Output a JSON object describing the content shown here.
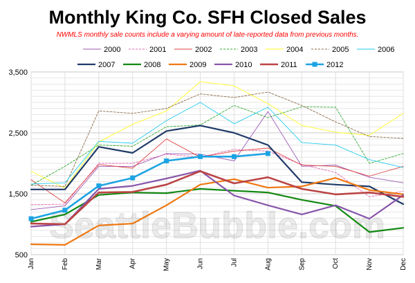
{
  "chart_data": {
    "type": "line",
    "title": "Monthly King Co. SFH Closed Sales",
    "subtitle": "NWMLS monthly sale counts include a varying amount of late-reported  data from previous months.",
    "watermark": "SeattleBubble.com",
    "categories": [
      "Jan",
      "Feb",
      "Mar",
      "Apr",
      "May",
      "Jun",
      "Jul",
      "Aug",
      "Sep",
      "Oct",
      "Nov",
      "Dec"
    ],
    "ylim": [
      500,
      3500
    ],
    "yticks": [
      "500",
      "1,500",
      "2,500",
      "3,500"
    ],
    "legend_position": "top",
    "grid": true,
    "series": [
      {
        "name": "2000",
        "color": "#9b59b6",
        "style": "solid",
        "width": 0.9,
        "marker": false,
        "values": [
          1240,
          1300,
          1950,
          1950,
          2160,
          2150,
          2040,
          2850,
          1950,
          1970,
          1770,
          1680
        ]
      },
      {
        "name": "2001",
        "color": "#e066b0",
        "style": "dashed",
        "width": 0.9,
        "marker": false,
        "values": [
          1320,
          1330,
          2000,
          2000,
          2150,
          2100,
          2230,
          2200,
          1980,
          1850,
          1450,
          1540
        ]
      },
      {
        "name": "2002",
        "color": "#e04040",
        "style": "solid",
        "width": 0.9,
        "marker": false,
        "values": [
          1730,
          1350,
          1980,
          1920,
          2400,
          2100,
          2200,
          2250,
          1970,
          1950,
          1790,
          1950
        ]
      },
      {
        "name": "2003",
        "color": "#33aa33",
        "style": "dashed",
        "width": 0.9,
        "marker": false,
        "values": [
          1640,
          1950,
          2300,
          2280,
          2600,
          2630,
          2950,
          2750,
          2930,
          2920,
          2000,
          2160
        ]
      },
      {
        "name": "2004",
        "color": "#ffff22",
        "style": "solid",
        "width": 0.9,
        "marker": false,
        "values": [
          1870,
          1590,
          2350,
          2640,
          2860,
          3340,
          3270,
          2980,
          2620,
          2510,
          2460,
          2820
        ]
      },
      {
        "name": "2005",
        "color": "#8b6a4a",
        "style": "dashed",
        "width": 0.9,
        "marker": false,
        "values": [
          1640,
          1620,
          2860,
          2820,
          2900,
          3140,
          3080,
          3170,
          2950,
          2680,
          2440,
          2410
        ]
      },
      {
        "name": "2006",
        "color": "#22ccee",
        "style": "solid",
        "width": 0.9,
        "marker": false,
        "values": [
          1660,
          1680,
          2360,
          2330,
          2700,
          3000,
          2650,
          2920,
          2340,
          2300,
          2060,
          1930
        ]
      },
      {
        "name": "2007",
        "color": "#1f3a68",
        "style": "solid",
        "width": 2.2,
        "marker": false,
        "values": [
          1570,
          1570,
          2270,
          2170,
          2530,
          2620,
          2500,
          2300,
          1690,
          1650,
          1620,
          1330
        ]
      },
      {
        "name": "2008",
        "color": "#118811",
        "style": "solid",
        "width": 2.2,
        "marker": false,
        "values": [
          1040,
          1160,
          1480,
          1520,
          1510,
          1580,
          1550,
          1520,
          1400,
          1300,
          870,
          940
        ]
      },
      {
        "name": "2009",
        "color": "#ee7711",
        "style": "solid",
        "width": 2.2,
        "marker": false,
        "values": [
          670,
          660,
          980,
          1010,
          1310,
          1650,
          1740,
          1600,
          1620,
          1760,
          1560,
          1490
        ]
      },
      {
        "name": "2010",
        "color": "#8855aa",
        "style": "solid",
        "width": 2.2,
        "marker": false,
        "values": [
          960,
          1000,
          1580,
          1630,
          1750,
          1880,
          1470,
          1310,
          1160,
          1310,
          1090,
          1480
        ]
      },
      {
        "name": "2011",
        "color": "#bb4444",
        "style": "solid",
        "width": 2.6,
        "marker": false,
        "values": [
          1010,
          1000,
          1520,
          1530,
          1650,
          1870,
          1670,
          1770,
          1580,
          1490,
          1520,
          1450
        ]
      },
      {
        "name": "2012",
        "color": "#1ca3e3",
        "style": "solid",
        "width": 2.6,
        "marker": true,
        "values": [
          1090,
          1230,
          1630,
          1760,
          2040,
          2110,
          2110,
          2160,
          null,
          null,
          null,
          null
        ]
      }
    ]
  }
}
